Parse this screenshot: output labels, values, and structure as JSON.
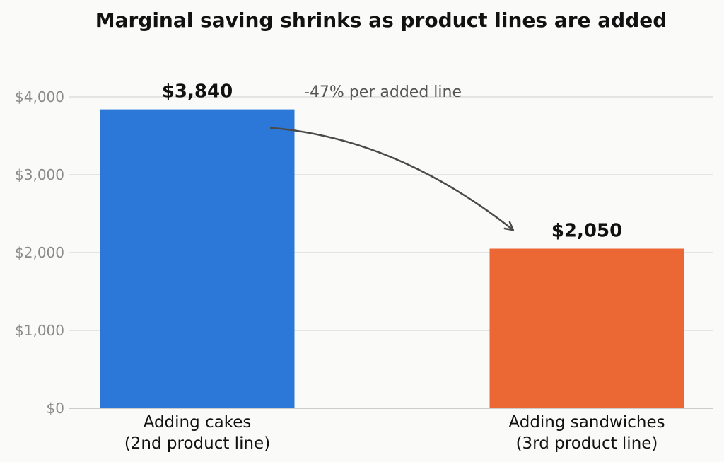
{
  "chart_data": {
    "type": "bar",
    "title": "Marginal saving shrinks as product lines are added",
    "categories": [
      [
        "Adding cakes",
        "(2nd product line)"
      ],
      [
        "Adding sandwiches",
        "(3rd product line)"
      ]
    ],
    "values": [
      3840,
      2050
    ],
    "data_labels": [
      "$3,840",
      "$2,050"
    ],
    "colors": [
      "#2b78d8",
      "#eb6834"
    ],
    "ylim": [
      0,
      4000
    ],
    "yticks": [
      0,
      1000,
      2000,
      3000,
      4000
    ],
    "ytick_labels": [
      "$0",
      "$1,000",
      "$2,000",
      "$3,000",
      "$4,000"
    ],
    "xlabel": "",
    "ylabel": "",
    "grid": "horizontal",
    "annotation": {
      "text": "-47% per added line",
      "arrow_from": "bar 1",
      "arrow_to": "bar 2"
    }
  }
}
